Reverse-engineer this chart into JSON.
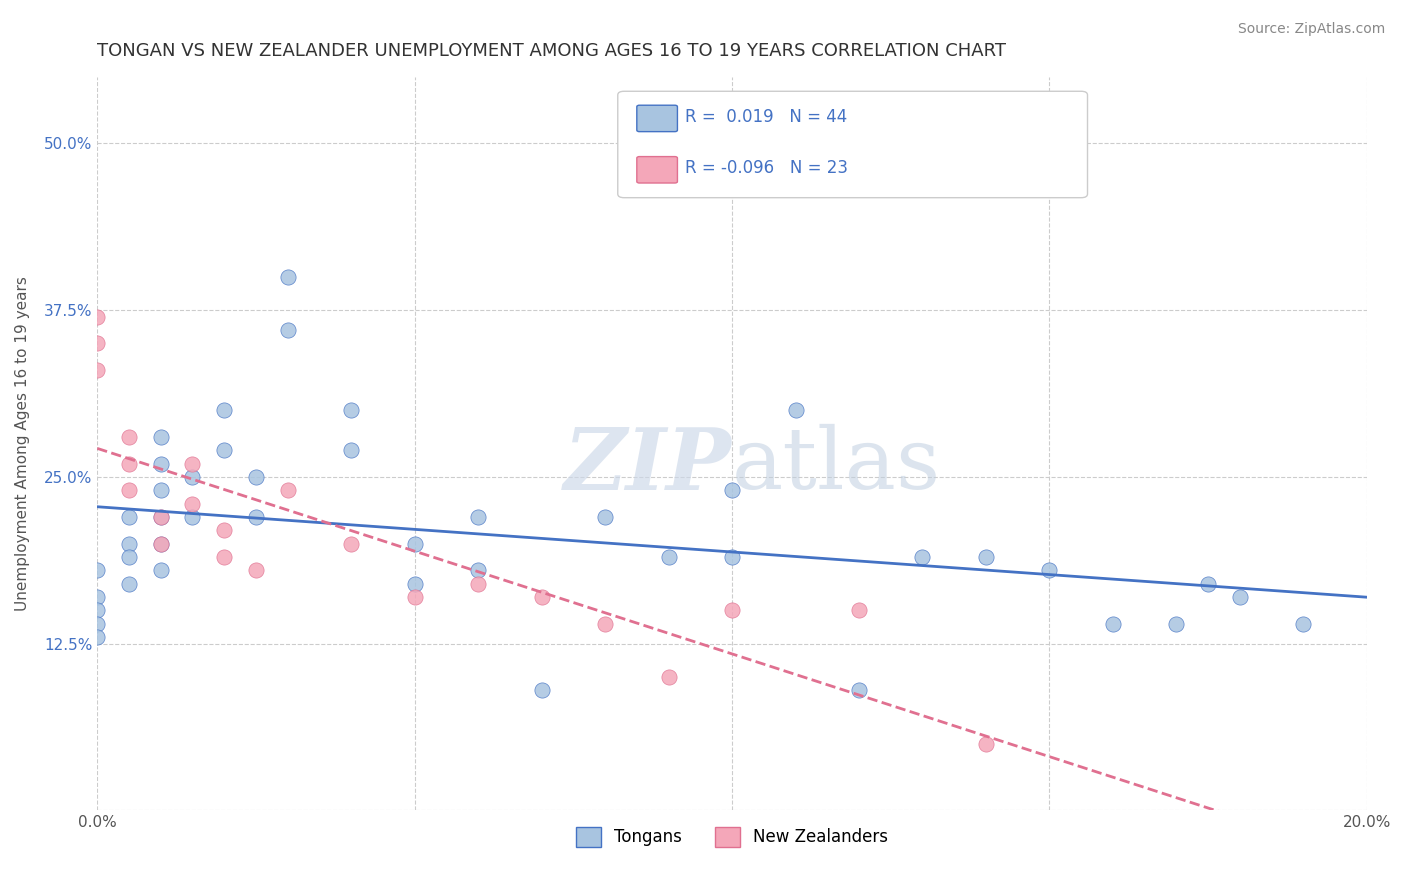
{
  "title": "TONGAN VS NEW ZEALANDER UNEMPLOYMENT AMONG AGES 16 TO 19 YEARS CORRELATION CHART",
  "source": "Source: ZipAtlas.com",
  "ylabel": "Unemployment Among Ages 16 to 19 years",
  "xlim": [
    0.0,
    0.2
  ],
  "ylim": [
    0.0,
    0.55
  ],
  "x_ticks": [
    0.0,
    0.05,
    0.1,
    0.15,
    0.2
  ],
  "x_tick_labels": [
    "0.0%",
    "",
    "",
    "",
    "20.0%"
  ],
  "y_ticks": [
    0.0,
    0.125,
    0.25,
    0.375,
    0.5
  ],
  "y_tick_labels": [
    "",
    "12.5%",
    "25.0%",
    "37.5%",
    "50.0%"
  ],
  "r_tongan": 0.019,
  "n_tongan": 44,
  "r_nz": -0.096,
  "n_nz": 23,
  "tongan_color": "#a8c4e0",
  "nz_color": "#f4a7b9",
  "tongan_line_color": "#4472c4",
  "nz_line_color": "#e07090",
  "tongan_scatter_x": [
    0.0,
    0.0,
    0.0,
    0.0,
    0.0,
    0.005,
    0.005,
    0.005,
    0.005,
    0.01,
    0.01,
    0.01,
    0.01,
    0.01,
    0.01,
    0.015,
    0.015,
    0.02,
    0.02,
    0.025,
    0.025,
    0.03,
    0.03,
    0.04,
    0.04,
    0.05,
    0.05,
    0.06,
    0.06,
    0.07,
    0.08,
    0.09,
    0.1,
    0.1,
    0.11,
    0.12,
    0.13,
    0.14,
    0.15,
    0.16,
    0.17,
    0.175,
    0.18,
    0.19
  ],
  "tongan_scatter_y": [
    0.18,
    0.16,
    0.15,
    0.14,
    0.13,
    0.22,
    0.2,
    0.19,
    0.17,
    0.28,
    0.26,
    0.24,
    0.22,
    0.2,
    0.18,
    0.25,
    0.22,
    0.3,
    0.27,
    0.25,
    0.22,
    0.4,
    0.36,
    0.3,
    0.27,
    0.2,
    0.17,
    0.22,
    0.18,
    0.09,
    0.22,
    0.19,
    0.24,
    0.19,
    0.3,
    0.09,
    0.19,
    0.19,
    0.18,
    0.14,
    0.14,
    0.17,
    0.16,
    0.14
  ],
  "nz_scatter_x": [
    0.0,
    0.0,
    0.0,
    0.005,
    0.005,
    0.005,
    0.01,
    0.01,
    0.015,
    0.015,
    0.02,
    0.02,
    0.025,
    0.03,
    0.04,
    0.05,
    0.06,
    0.07,
    0.08,
    0.09,
    0.1,
    0.12,
    0.14
  ],
  "nz_scatter_y": [
    0.37,
    0.35,
    0.33,
    0.28,
    0.26,
    0.24,
    0.22,
    0.2,
    0.26,
    0.23,
    0.21,
    0.19,
    0.18,
    0.24,
    0.2,
    0.16,
    0.17,
    0.16,
    0.14,
    0.1,
    0.15,
    0.15,
    0.05
  ],
  "background_color": "#ffffff",
  "grid_color": "#cccccc"
}
